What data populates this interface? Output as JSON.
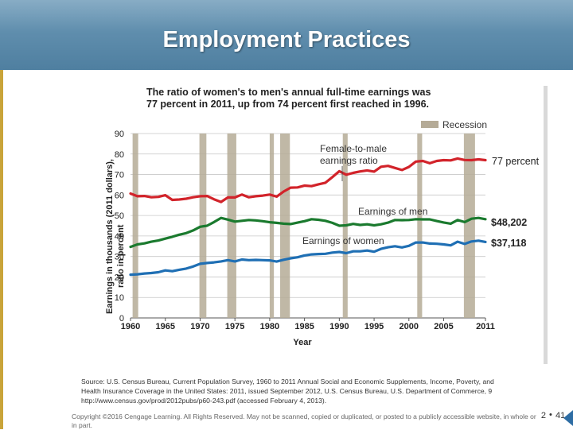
{
  "slide": {
    "title": "Employment Practices",
    "copyright": "Copyright ©2016 Cengage Learning. All Rights Reserved. May not be scanned, copied or duplicated, or posted to a publicly accessible website, in whole or in part.",
    "chapter": "2",
    "page": "41"
  },
  "colors": {
    "women_to_men_ratio": "#d2232a",
    "earnings_of_men": "#1a7a2e",
    "earnings_of_women": "#1f6fb4",
    "recession": "#b5ab97"
  },
  "chart_data": {
    "type": "line",
    "title_line1": "The ratio of women's to men's annual full-time earnings was",
    "title_line2": "77 percent in 2011, up from 74 percent first reached in 1996.",
    "ylabel_line1": "Earnings in thousands (2011 dollars),",
    "ylabel_line2": "ratio in percent",
    "xlabel": "Year",
    "ylim": [
      0,
      90
    ],
    "xlim": [
      1960,
      2011
    ],
    "yticks": [
      "0",
      "10",
      "20",
      "30",
      "40",
      "50",
      "60",
      "70",
      "80",
      "90"
    ],
    "xticks": [
      "1960",
      "1965",
      "1970",
      "1975",
      "1980",
      "1985",
      "1990",
      "1995",
      "2000",
      "2005",
      "2011"
    ],
    "legend_label": "Recession",
    "recessions": [
      [
        1960.3,
        1961.1
      ],
      [
        1969.9,
        1970.9
      ],
      [
        1973.9,
        1975.2
      ],
      [
        1980.0,
        1980.6
      ],
      [
        1981.5,
        1982.9
      ],
      [
        1990.5,
        1991.2
      ],
      [
        2001.2,
        2001.9
      ],
      [
        2007.9,
        2009.5
      ]
    ],
    "x": [
      1960,
      1961,
      1962,
      1963,
      1964,
      1965,
      1966,
      1967,
      1968,
      1969,
      1970,
      1971,
      1972,
      1973,
      1974,
      1975,
      1976,
      1977,
      1978,
      1979,
      1980,
      1981,
      1982,
      1983,
      1984,
      1985,
      1986,
      1987,
      1988,
      1989,
      1990,
      1991,
      1992,
      1993,
      1994,
      1995,
      1996,
      1997,
      1998,
      1999,
      2000,
      2001,
      2002,
      2003,
      2004,
      2005,
      2006,
      2007,
      2008,
      2009,
      2010,
      2011
    ],
    "series": [
      {
        "name": "Female-to-male earnings ratio",
        "color_key": "women_to_men_ratio",
        "values": [
          60.7,
          59.4,
          59.5,
          58.9,
          59.1,
          59.9,
          57.6,
          57.8,
          58.2,
          58.9,
          59.4,
          59.5,
          57.9,
          56.6,
          58.8,
          58.8,
          60.2,
          58.9,
          59.4,
          59.7,
          60.2,
          59.2,
          61.7,
          63.6,
          63.7,
          64.6,
          64.3,
          65.2,
          66.0,
          68.7,
          71.6,
          69.9,
          70.8,
          71.5,
          72.0,
          71.4,
          73.8,
          74.2,
          73.2,
          72.2,
          73.7,
          76.3,
          76.6,
          75.5,
          76.6,
          77.0,
          76.9,
          77.8,
          77.1,
          77.0,
          77.4,
          77.0
        ]
      },
      {
        "name": "Earnings of men",
        "color_key": "earnings_of_men",
        "values": [
          34.7,
          35.9,
          36.4,
          37.2,
          37.8,
          38.7,
          39.6,
          40.6,
          41.4,
          42.7,
          44.5,
          45.0,
          46.8,
          48.8,
          48.0,
          47.0,
          47.4,
          47.8,
          47.6,
          47.2,
          46.7,
          46.4,
          46.0,
          45.8,
          46.5,
          47.2,
          48.2,
          47.9,
          47.4,
          46.4,
          45.0,
          45.2,
          45.9,
          45.4,
          45.7,
          45.2,
          45.7,
          46.5,
          47.8,
          47.7,
          47.8,
          48.2,
          48.1,
          48.1,
          47.3,
          46.6,
          46.0,
          47.8,
          46.8,
          48.4,
          48.8,
          48.2
        ]
      },
      {
        "name": "Earnings of women",
        "color_key": "earnings_of_women",
        "values": [
          21.1,
          21.3,
          21.7,
          21.9,
          22.3,
          23.2,
          22.8,
          23.5,
          24.1,
          25.1,
          26.4,
          26.8,
          27.1,
          27.6,
          28.2,
          27.6,
          28.5,
          28.2,
          28.3,
          28.2,
          28.1,
          27.5,
          28.4,
          29.1,
          29.6,
          30.5,
          31.0,
          31.2,
          31.3,
          31.9,
          32.2,
          31.6,
          32.5,
          32.5,
          32.9,
          32.3,
          33.7,
          34.5,
          35.0,
          34.4,
          35.2,
          36.8,
          36.8,
          36.3,
          36.2,
          35.9,
          35.4,
          37.2,
          36.1,
          37.3,
          37.7,
          37.1
        ]
      }
    ],
    "annotations": [
      {
        "text_line1": "Female-to-male",
        "text_line2": "earnings ratio",
        "target": "ratio"
      },
      {
        "text": "Earnings of men",
        "target": "men"
      },
      {
        "text": "Earnings of women",
        "target": "women"
      }
    ],
    "end_labels": [
      "77 percent",
      "$48,202",
      "$37,118"
    ],
    "source_line1": "Source: U.S. Census Bureau, Current Population Survey, 1960 to 2011 Annual Social and Economic Supplements, Income, Poverty, and",
    "source_line2": "Health Insurance Coverage in the United States: 2011, issued September 2012, U.S. Census Bureau, U.S. Department of Commerce, 9",
    "source_line3": "http://www.census.gov/prod/2012pubs/p60-243.pdf (accessed February 4, 2013)."
  }
}
